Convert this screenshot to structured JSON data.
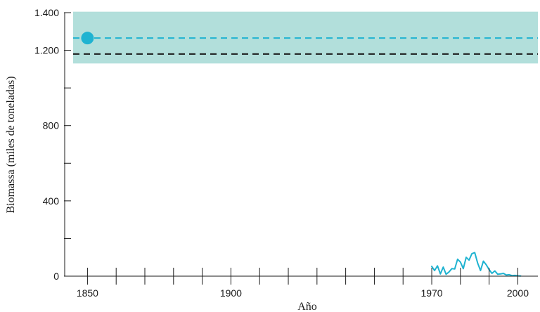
{
  "chart_data": {
    "type": "line",
    "xlabel": "Año",
    "ylabel": "Biomassa (miles de toneladas)",
    "xlim": [
      1845,
      2007
    ],
    "ylim": [
      0,
      1400
    ],
    "x_ticks": [
      1850,
      1860,
      1870,
      1880,
      1890,
      1900,
      1910,
      1920,
      1930,
      1940,
      1950,
      1960,
      1970,
      1980,
      1990,
      2000
    ],
    "x_tick_labels": [
      {
        "value": 1850,
        "label": "1850"
      },
      {
        "value": 1900,
        "label": "1900"
      },
      {
        "value": 1970,
        "label": "1970"
      },
      {
        "value": 2000,
        "label": "2000"
      }
    ],
    "y_ticks": [
      0,
      200,
      400,
      600,
      800,
      1000,
      1200,
      1400
    ],
    "y_tick_labels": [
      {
        "value": 0,
        "label": "0"
      },
      {
        "value": 400,
        "label": "400"
      },
      {
        "value": 800,
        "label": "800"
      },
      {
        "value": 1200,
        "label": "1.200"
      },
      {
        "value": 1400,
        "label": "1.400"
      }
    ],
    "band": {
      "y_min": 1130,
      "y_max": 1405,
      "color": "#b2dfdb"
    },
    "reference_lines": [
      {
        "y": 1265,
        "color": "#1fb3d1",
        "style": "dashed"
      },
      {
        "y": 1180,
        "color": "#1a1a1a",
        "style": "dashed"
      }
    ],
    "point": {
      "x": 1850,
      "y": 1265,
      "color": "#1fb3d1"
    },
    "series": [
      {
        "color": "#1fb3d1",
        "x": [
          1970,
          1971,
          1972,
          1973,
          1974,
          1975,
          1976,
          1977,
          1978,
          1979,
          1980,
          1981,
          1982,
          1983,
          1984,
          1985,
          1986,
          1987,
          1988,
          1989,
          1990,
          1991,
          1992,
          1993,
          1994,
          1995,
          1996,
          1997,
          1998,
          1999,
          2000,
          2001
        ],
        "y": [
          52,
          30,
          55,
          12,
          48,
          10,
          22,
          40,
          38,
          90,
          75,
          40,
          100,
          85,
          120,
          125,
          70,
          30,
          80,
          60,
          35,
          15,
          28,
          10,
          12,
          15,
          6,
          8,
          3,
          4,
          2,
          1
        ]
      }
    ]
  }
}
